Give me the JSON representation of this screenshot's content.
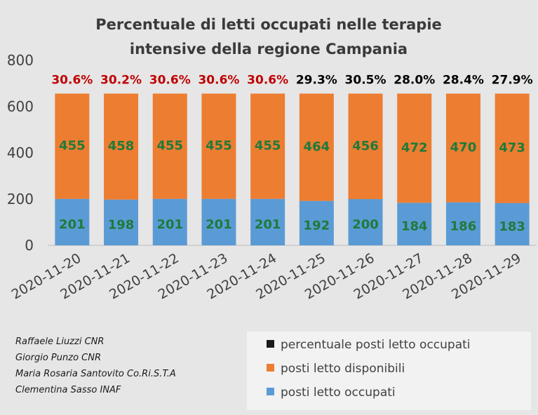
{
  "chart_data": {
    "type": "bar",
    "stacked": true,
    "title_lines": [
      "Percentuale di letti occupati nelle terapie",
      "intensive della regione Campania"
    ],
    "categories": [
      "2020-11-20",
      "2020-11-21",
      "2020-11-22",
      "2020-11-23",
      "2020-11-24",
      "2020-11-25",
      "2020-11-26",
      "2020-11-27",
      "2020-11-28",
      "2020-11-29"
    ],
    "series": [
      {
        "name": "posti letto occupati",
        "color": "#5b9bd5",
        "values": [
          201,
          198,
          201,
          201,
          201,
          192,
          200,
          184,
          186,
          183
        ]
      },
      {
        "name": "posti letto disponibili",
        "color": "#ed7d31",
        "values": [
          455,
          458,
          455,
          455,
          455,
          464,
          456,
          472,
          470,
          473
        ]
      }
    ],
    "percent_series": {
      "name": "percentuale posti letto occupati",
      "color": "#1a1a1a",
      "labels": [
        "30.6%",
        "30.2%",
        "30.6%",
        "30.6%",
        "30.6%",
        "29.3%",
        "30.5%",
        "28.0%",
        "28.4%",
        "27.9%"
      ],
      "label_colors": [
        "#c00000",
        "#c00000",
        "#c00000",
        "#c00000",
        "#c00000",
        "#000000",
        "#000000",
        "#000000",
        "#000000",
        "#000000"
      ]
    },
    "ylim": [
      0,
      800
    ],
    "yticks": [
      0,
      200,
      400,
      600,
      800
    ],
    "value_label_color": "#1f7a3a",
    "legend_position": "bottom-right",
    "grid": false
  },
  "credits": [
    "Raffaele Liuzzi CNR",
    "Giorgio Punzo CNR",
    "Maria Rosaria Santovito Co.Ri.S.T.A",
    "Clementina Sasso INAF"
  ],
  "legend": [
    {
      "label": "percentuale posti letto occupati",
      "color": "#1a1a1a"
    },
    {
      "label": "posti letto disponibili",
      "color": "#ed7d31"
    },
    {
      "label": "posti letto occupati",
      "color": "#5b9bd5"
    }
  ]
}
